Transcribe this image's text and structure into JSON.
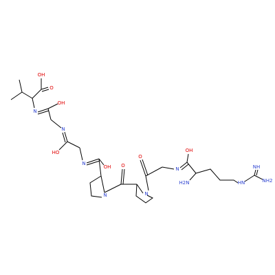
{
  "atoms": [
    {
      "label": "OH"
    },
    {
      "label": "O"
    },
    {
      "label": "N"
    },
    {
      "label": "OH"
    },
    {
      "label": "N"
    },
    {
      "label": "HO"
    },
    {
      "label": "N"
    },
    {
      "label": "OH"
    },
    {
      "label": "N"
    },
    {
      "label": "O"
    },
    {
      "label": "N"
    },
    {
      "label": "O"
    },
    {
      "label": "N"
    },
    {
      "label": "OH"
    },
    {
      "label": "H2N"
    },
    {
      "label": "HN"
    },
    {
      "label": "NH"
    },
    {
      "label": "NH2"
    }
  ]
}
